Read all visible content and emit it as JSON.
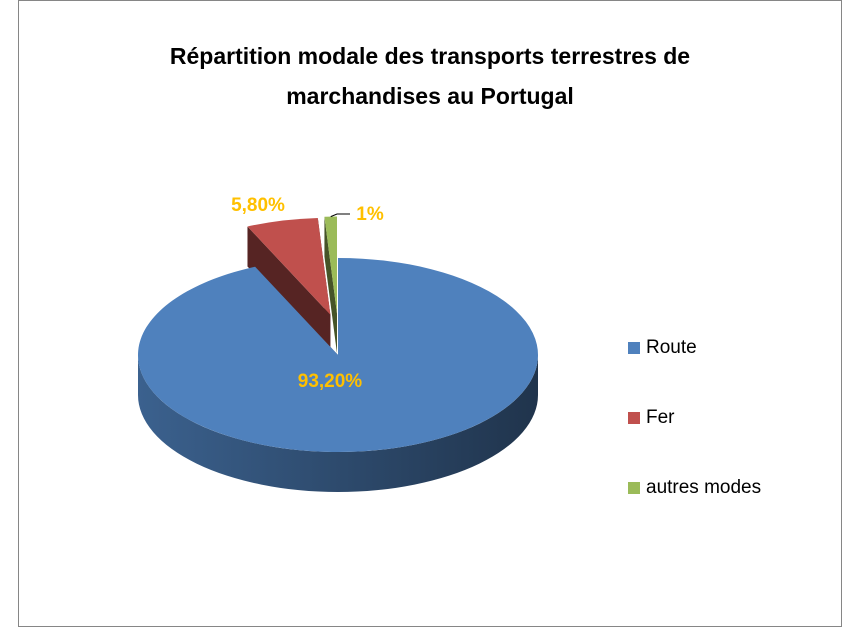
{
  "chart_data": {
    "type": "pie3d",
    "title": "Répartition modale des transports  terrestres  de marchandises au Portugal",
    "categories": [
      "Route",
      "Fer",
      "autres modes"
    ],
    "values": [
      93.2,
      5.8,
      1
    ],
    "value_labels": [
      "93,20%",
      "5,80%",
      "1%"
    ],
    "colors": [
      "#4f81bd",
      "#c0504d",
      "#9bbb59"
    ],
    "label_color": "#ffc000",
    "legend": "right"
  }
}
